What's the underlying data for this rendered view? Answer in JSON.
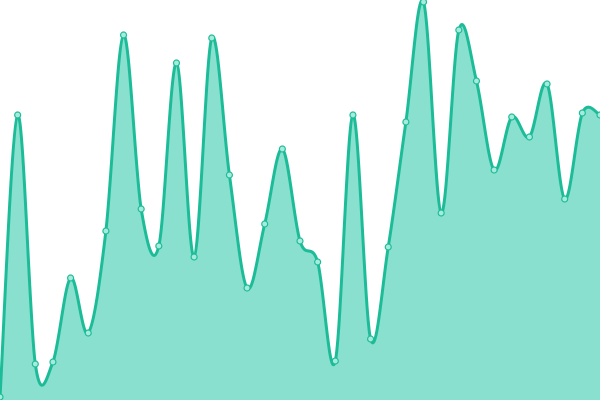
{
  "chart_data": {
    "type": "area",
    "title": "",
    "xlabel": "",
    "ylabel": "",
    "ylim": [
      0,
      400
    ],
    "grid": false,
    "legend": "none",
    "x": [
      0,
      1,
      2,
      3,
      4,
      5,
      6,
      7,
      8,
      9,
      10,
      11,
      12,
      13,
      14,
      15,
      16,
      17,
      18,
      19,
      20,
      21,
      22,
      23,
      24,
      25,
      26,
      27,
      28,
      29,
      30,
      31,
      32,
      33,
      34
    ],
    "series": [
      {
        "values": [
          3,
          285,
          36,
          38,
          122,
          67,
          169,
          365,
          191,
          154,
          337,
          143,
          362,
          225,
          112,
          176,
          251,
          159,
          138,
          39,
          285,
          61,
          153,
          278,
          398,
          187,
          370,
          319,
          230,
          283,
          263,
          316,
          201,
          287,
          285
        ]
      }
    ],
    "colors": {
      "line": "#1dbc98",
      "fill": "#8ae0cf",
      "point_fill": "#a6ebdb"
    }
  }
}
